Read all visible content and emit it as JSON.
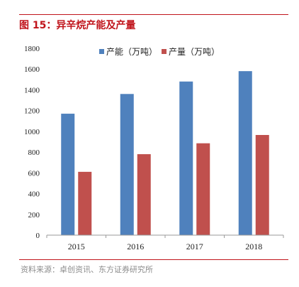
{
  "figure": {
    "title": "图 15：异辛烷产能及产量",
    "source": "资料来源：卓创资讯、东方证券研究所"
  },
  "colors": {
    "accent": "#c0141b",
    "series_capacity": "#4f81bd",
    "series_output": "#c0504d"
  },
  "chart_data": {
    "type": "bar",
    "categories": [
      "2015",
      "2016",
      "2017",
      "2018"
    ],
    "series": [
      {
        "name": "产能（万吨）",
        "values": [
          1170,
          1360,
          1480,
          1580
        ]
      },
      {
        "name": "产量（万吨）",
        "values": [
          610,
          780,
          885,
          965
        ]
      }
    ],
    "ylim": [
      0,
      1800
    ],
    "yticks": [
      0,
      200,
      400,
      600,
      800,
      1000,
      1200,
      1400,
      1600,
      1800
    ],
    "grid": false,
    "legend": "top-center"
  }
}
